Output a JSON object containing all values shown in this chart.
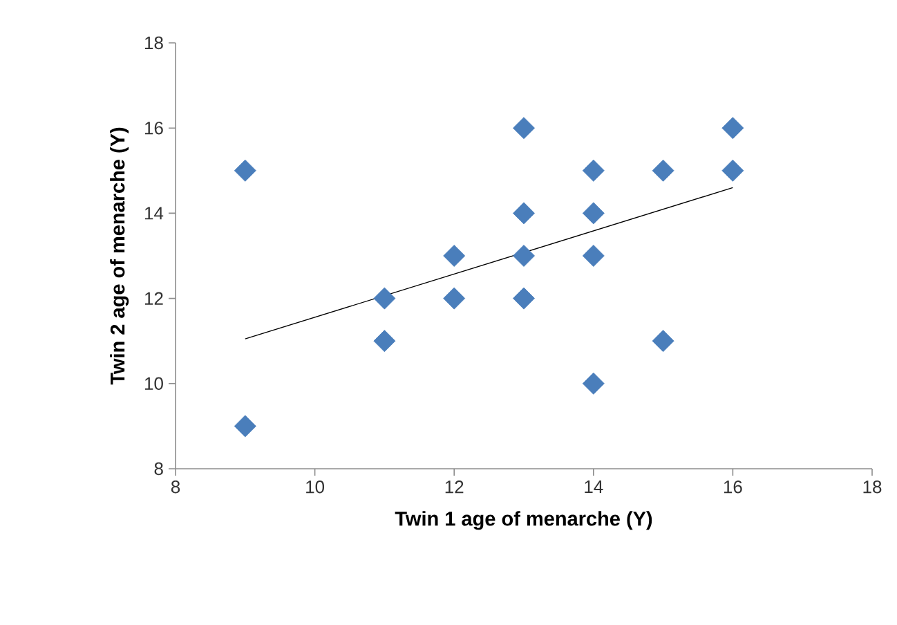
{
  "chart_data": {
    "type": "scatter",
    "xlabel": "Twin 1 age of menarche (Y)",
    "ylabel": "Twin 2 age of menarche (Y)",
    "xlim": [
      8,
      18
    ],
    "ylim": [
      8,
      18
    ],
    "xticks": [
      8,
      10,
      12,
      14,
      16,
      18
    ],
    "yticks": [
      8,
      10,
      12,
      14,
      16,
      18
    ],
    "series": [
      {
        "marker": "diamond",
        "color": "#4a7ebb",
        "x": [
          9,
          9,
          11,
          11,
          12,
          12,
          13,
          13,
          13,
          13,
          14,
          14,
          14,
          14,
          15,
          15,
          16,
          16
        ],
        "values": [
          15,
          9,
          12,
          11,
          13,
          12,
          16,
          14,
          13,
          12,
          15,
          14,
          13,
          10,
          15,
          11,
          16,
          15
        ]
      },
      {
        "type": "line",
        "color": "#000000",
        "x": [
          9,
          16
        ],
        "values": [
          11.05,
          14.6
        ]
      }
    ]
  }
}
